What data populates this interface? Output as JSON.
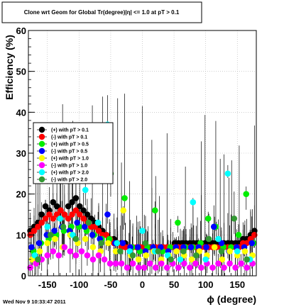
{
  "timestamp": "Wed Nov  9 10:33:47 2011",
  "chart_data": {
    "type": "scatter",
    "title": "Clone wrt Geom for Global Tr(degree)|η| <= 1.0 at pT > 0.1",
    "xlabel": "ϕ (degree)",
    "ylabel": "Efficiency (%)",
    "xlim": [
      -180,
      180
    ],
    "ylim": [
      0,
      60
    ],
    "x_ticks": [
      -150,
      -100,
      -50,
      0,
      50,
      100,
      150
    ],
    "y_ticks": [
      0,
      10,
      20,
      30,
      40,
      50,
      60
    ],
    "x_tick_labels": [
      "-150",
      "-100",
      "-50",
      "0",
      "50",
      "100",
      "150"
    ],
    "y_tick_labels": [
      "0",
      "10",
      "20",
      "30",
      "40",
      "50",
      "60"
    ],
    "grid": true,
    "legend_position": "left-middle",
    "series": [
      {
        "name": "(+) with pT > 0.1",
        "color": "#000000",
        "x": [
          -177,
          -171,
          -165,
          -159,
          -153,
          -147,
          -141,
          -135,
          -129,
          -123,
          -117,
          -111,
          -105,
          -99,
          -93,
          -87,
          -81,
          -75,
          -69,
          -63,
          -57,
          -51,
          -45,
          -39,
          -33,
          -27,
          -21,
          -15,
          -9,
          -3,
          3,
          9,
          15,
          21,
          27,
          33,
          39,
          45,
          51,
          57,
          63,
          69,
          75,
          81,
          87,
          93,
          99,
          105,
          111,
          117,
          123,
          129,
          135,
          141,
          147,
          153,
          159,
          165,
          171,
          177
        ],
        "y": [
          11,
          12,
          13,
          15,
          17,
          16,
          18,
          17,
          16,
          15,
          17,
          18,
          19,
          17,
          16,
          15,
          14,
          13,
          12,
          11,
          10,
          9,
          9,
          8,
          8,
          8,
          7,
          7,
          7,
          7,
          7,
          7,
          7,
          7,
          7,
          7,
          7,
          7,
          8,
          8,
          8,
          8,
          8,
          8,
          8,
          8,
          8,
          8,
          8,
          8,
          8,
          8,
          8,
          8,
          8,
          8,
          9,
          9,
          10,
          11
        ]
      },
      {
        "name": "(-) with pT > 0.1",
        "color": "#ff0000",
        "x": [
          -177,
          -171,
          -165,
          -159,
          -153,
          -147,
          -141,
          -135,
          -129,
          -123,
          -117,
          -111,
          -105,
          -99,
          -93,
          -87,
          -81,
          -75,
          -69,
          -63,
          -57,
          -51,
          -45,
          -39,
          -33,
          -27,
          -21,
          -15,
          -9,
          -3,
          3,
          9,
          15,
          21,
          27,
          33,
          39,
          45,
          51,
          57,
          63,
          69,
          75,
          81,
          87,
          93,
          99,
          105,
          111,
          117,
          123,
          129,
          135,
          141,
          147,
          153,
          159,
          165,
          171,
          177
        ],
        "y": [
          10,
          11,
          12,
          13,
          14,
          15,
          14,
          15,
          16,
          15,
          14,
          15,
          16,
          15,
          14,
          13,
          12,
          12,
          11,
          10,
          10,
          9,
          8,
          8,
          7,
          7,
          7,
          7,
          7,
          7,
          7,
          7,
          7,
          7,
          7,
          7,
          7,
          7,
          7,
          7,
          7,
          7,
          7,
          7,
          7,
          7,
          7,
          7,
          7,
          7,
          7,
          7,
          7,
          7,
          7,
          7,
          8,
          8,
          9,
          10
        ]
      },
      {
        "name": "(+) with pT > 0.5",
        "color": "#00ee00",
        "x": [
          -172,
          -160,
          -148,
          -136,
          -124,
          -112,
          -100,
          -88,
          -76,
          -64,
          -52,
          -40,
          -28,
          -16,
          -4,
          8,
          20,
          32,
          44,
          56,
          68,
          80,
          92,
          104,
          116,
          128,
          140,
          152,
          164,
          176
        ],
        "y": [
          6,
          8,
          9,
          10,
          11,
          12,
          12,
          11,
          10,
          9,
          9,
          8,
          19,
          7,
          6,
          7,
          16,
          6,
          7,
          13,
          7,
          7,
          8,
          14,
          12,
          7,
          7,
          10,
          20,
          8
        ]
      },
      {
        "name": "(-) with pT > 0.5",
        "color": "#0000ff",
        "x": [
          -175,
          -163,
          -151,
          -139,
          -127,
          -115,
          -103,
          -91,
          -79,
          -67,
          -55,
          -43,
          -31,
          -19,
          -7,
          5,
          17,
          29,
          41,
          53,
          65,
          77,
          89,
          101,
          113,
          125,
          137,
          149,
          161,
          173
        ],
        "y": [
          7,
          8,
          10,
          11,
          12,
          11,
          13,
          12,
          10,
          9,
          15,
          8,
          8,
          7,
          7,
          6,
          7,
          7,
          6,
          7,
          7,
          7,
          7,
          7,
          12,
          8,
          6,
          7,
          7,
          8
        ]
      },
      {
        "name": "(+) with pT > 1.0",
        "color": "#ffff00",
        "x": [
          -174,
          -162,
          -150,
          -138,
          -126,
          -114,
          -102,
          -90,
          -78,
          -66,
          -54,
          -42,
          -30,
          -18,
          -6,
          6,
          18,
          30,
          42,
          54,
          66,
          78,
          90,
          102,
          114,
          126,
          138,
          150,
          162,
          174
        ],
        "y": [
          4,
          6,
          8,
          9,
          7,
          10,
          8,
          9,
          7,
          6,
          8,
          6,
          16,
          5,
          4,
          5,
          6,
          4,
          5,
          6,
          5,
          4,
          6,
          5,
          7,
          4,
          6,
          5,
          6,
          5
        ]
      },
      {
        "name": "(-) with pT > 1.0",
        "color": "#ff00ff",
        "x": [
          -177,
          -168,
          -159,
          -150,
          -141,
          -132,
          -123,
          -114,
          -105,
          -96,
          -87,
          -78,
          -69,
          -60,
          -51,
          -42,
          -33,
          -24,
          -15,
          -6,
          3,
          12,
          21,
          30,
          39,
          48,
          57,
          66,
          75,
          84,
          93,
          102,
          111,
          120,
          129,
          138,
          147,
          156,
          165,
          174
        ],
        "y": [
          2,
          3,
          4,
          5,
          6,
          5,
          7,
          6,
          5,
          6,
          5,
          4,
          5,
          4,
          3,
          3,
          3,
          2,
          3,
          2,
          2,
          3,
          2,
          3,
          2,
          3,
          2,
          3,
          2,
          3,
          2,
          3,
          2,
          3,
          2,
          3,
          2,
          3,
          2,
          3
        ]
      },
      {
        "name": "(+) with pT > 2.0",
        "color": "#00ffff",
        "x": [
          -170,
          -150,
          -130,
          -110,
          -90,
          -70,
          -55,
          -40,
          -20,
          0,
          20,
          40,
          60,
          80,
          100,
          120,
          135,
          150,
          170
        ],
        "y": [
          5,
          12,
          14,
          10,
          21,
          13,
          37,
          8,
          6,
          11,
          6,
          5,
          4,
          18,
          4,
          9,
          25,
          6,
          4
        ]
      },
      {
        "name": "(-) with pT > 2.0",
        "color": "#339933",
        "x": [
          -165,
          -145,
          -125,
          -105,
          -85,
          -65,
          -50,
          -35,
          -15,
          5,
          25,
          45,
          65,
          85,
          105,
          125,
          145,
          165
        ],
        "y": [
          4,
          10,
          12,
          9,
          13,
          8,
          25,
          6,
          5,
          8,
          6,
          4,
          6,
          5,
          9,
          6,
          14,
          4
        ]
      }
    ]
  }
}
